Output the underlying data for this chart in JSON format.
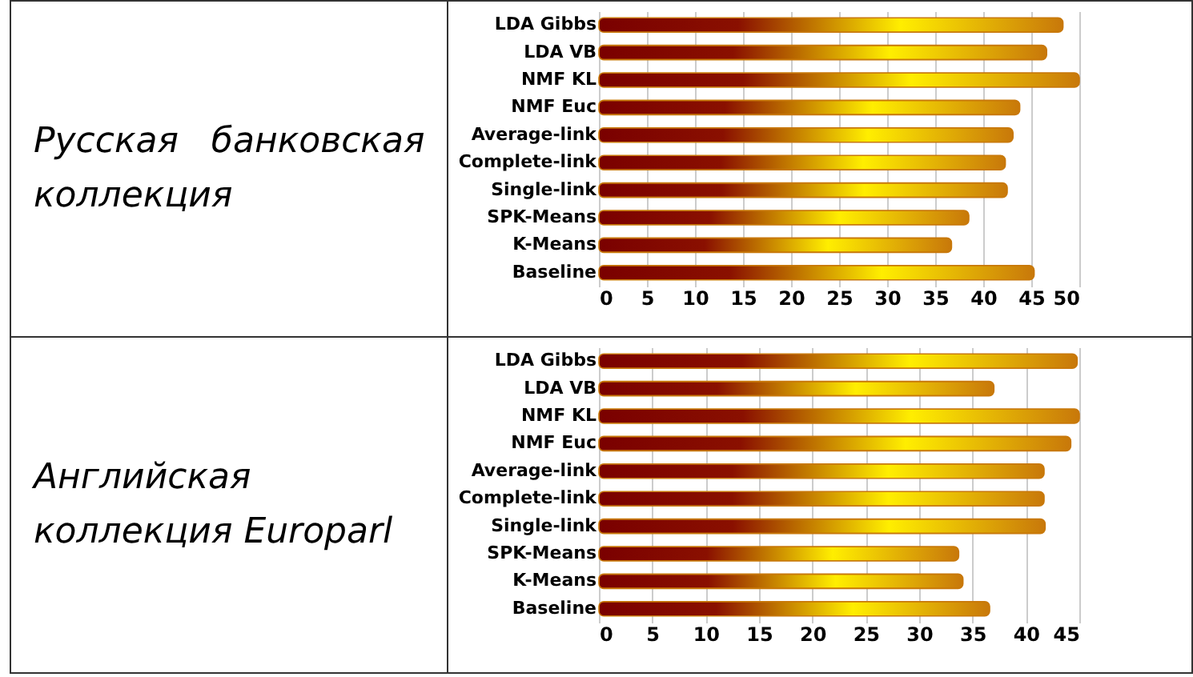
{
  "chart_data": [
    {
      "type": "bar",
      "title": "Русская банковская коллекция",
      "orientation": "horizontal",
      "categories": [
        "LDA Gibbs",
        "LDA VB",
        "NMF KL",
        "NMF Euc",
        "Average-link",
        "Complete-link",
        "Single-link",
        "SPK-Means",
        "K-Means",
        "Baseline"
      ],
      "values": [
        48.3,
        46.6,
        50,
        43.8,
        43.1,
        42.3,
        42.5,
        38.5,
        36.7,
        45.3
      ],
      "color": "#c8780a",
      "xlim": [
        0,
        50
      ],
      "xticks": [
        0,
        5,
        10,
        15,
        20,
        25,
        30,
        35,
        40,
        45,
        50
      ],
      "grid": "x"
    },
    {
      "type": "bar",
      "title": "Английская коллекция Europarl",
      "orientation": "horizontal",
      "categories": [
        "LDA Gibbs",
        "LDA VB",
        "NMF KL",
        "NMF Euc",
        "Average-link",
        "Complete-link",
        "Single-link",
        "SPK-Means",
        "K-Means",
        "Baseline"
      ],
      "values": [
        44.8,
        37.0,
        45,
        44.2,
        41.7,
        41.7,
        41.8,
        33.7,
        34.1,
        36.6
      ],
      "color": "#c8780a",
      "xlim": [
        0,
        45
      ],
      "xticks": [
        0,
        5,
        10,
        15,
        20,
        25,
        30,
        35,
        40,
        45
      ],
      "grid": "x"
    }
  ]
}
